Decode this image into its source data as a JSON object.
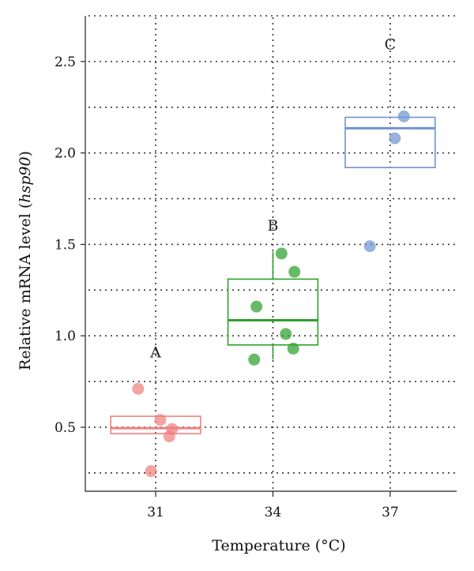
{
  "chart_data": {
    "type": "box",
    "xlabel": "Temperature (°C)",
    "ylabel_prefix": "Relative mRNA level (",
    "ylabel_italic": "hsp90",
    "ylabel_suffix": ")",
    "categories": [
      "31",
      "34",
      "37"
    ],
    "y_ticks": [
      0.5,
      1.0,
      1.5,
      2.0,
      2.5
    ],
    "y_tick_labels": [
      "0.5",
      "1.0",
      "1.5",
      "2.0",
      "2.5"
    ],
    "ylim": [
      0.15,
      2.75
    ],
    "grid": true,
    "groups": [
      {
        "category": "31",
        "letter": "A",
        "color": "#f08080",
        "q1": 0.465,
        "median": 0.495,
        "q3": 0.56,
        "whisker_low": 0.465,
        "whisker_high": 0.56,
        "points": [
          {
            "x": 30.55,
            "y": 0.71
          },
          {
            "x": 31.12,
            "y": 0.54
          },
          {
            "x": 31.42,
            "y": 0.49
          },
          {
            "x": 31.35,
            "y": 0.45
          },
          {
            "x": 30.88,
            "y": 0.26
          }
        ]
      },
      {
        "category": "34",
        "letter": "B",
        "color": "#2ca02c",
        "q1": 0.95,
        "median": 1.085,
        "q3": 1.31,
        "whisker_low": 0.87,
        "whisker_high": 1.46,
        "points": [
          {
            "x": 34.22,
            "y": 1.45
          },
          {
            "x": 34.55,
            "y": 1.35
          },
          {
            "x": 33.58,
            "y": 1.16
          },
          {
            "x": 34.33,
            "y": 1.01
          },
          {
            "x": 34.52,
            "y": 0.93
          },
          {
            "x": 33.52,
            "y": 0.87
          }
        ]
      },
      {
        "category": "37",
        "letter": "C",
        "color": "#6f94cf",
        "q1": 1.92,
        "median": 2.135,
        "q3": 2.195,
        "whisker_low": 1.92,
        "whisker_high": 2.195,
        "points": [
          {
            "x": 37.35,
            "y": 2.2
          },
          {
            "x": 37.12,
            "y": 2.08
          },
          {
            "x": 36.48,
            "y": 1.49
          }
        ]
      }
    ]
  }
}
